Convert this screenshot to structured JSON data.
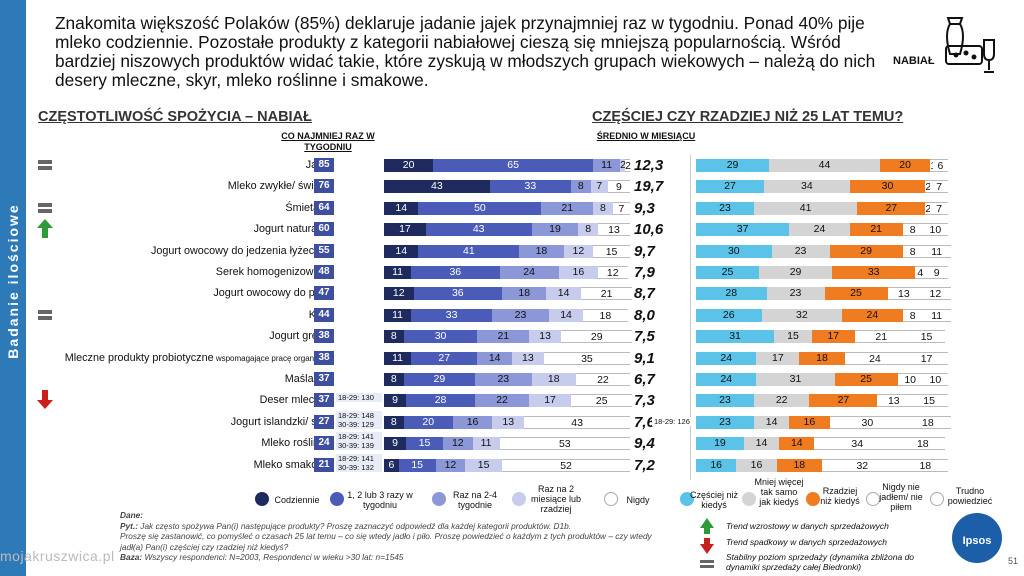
{
  "side_label": "Badanie ilościowe",
  "headline": "Znakomita większość Polaków (85%) deklaruje jadanie jajek przynajmniej raz w tygodniu. Ponad 40% pije mleko codziennie. Pozostałe produkty z kategorii nabiałowej cieszą się mniejszą popularnością. Wśród bardziej niszowych produktów widać takie, które zyskują w młodszych grupach wiekowych – należą do nich desery mleczne, skyr, mleko roślinne i smakowe.",
  "category_label": "NABIAŁ",
  "left_title": "CZĘSTOTLIWOŚĆ SPOŻYCIA – NABIAŁ",
  "right_title": "CZĘŚCIEJ CZY RZADZIEJ NIŻ 25 LAT TEMU?",
  "sub_week": "CO NAJMNIEJ RAZ W TYGODNIU",
  "sub_month": "ŚREDNIO W MIESIĄCU",
  "colors": {
    "codziennie": "#1f2a5e",
    "123": "#4a5cb8",
    "2-4": "#8c97d8",
    "raz2": "#c8ccec",
    "nigdy": "#ffffff",
    "czesciej": "#5bc3e8",
    "mniej": "#d4d4d4",
    "rzadziej": "#f07c22",
    "nigdy_r": "#ffffff",
    "trudno": "#ffffff",
    "trend_up": "#2e9b3a",
    "trend_down": "#c8211d",
    "trend_flat": "#666666"
  },
  "chart_data": [
    {
      "type": "bar",
      "title": "CZĘSTOTLIWOŚĆ SPOŻYCIA – NABIAŁ",
      "stacked": true,
      "categories": [
        "Jajka",
        "Mleko zwykłe/ świeże",
        "Śmietana",
        "Jogurt naturalny",
        "Jogurt owocowy do jedzenia łyżeczką",
        "Serek homogenizowany",
        "Jogurt owocowy do picia",
        "Kefir",
        "Jogurt grecki",
        "Mleczne produkty probiotyczne",
        "Maślanka",
        "Deser mleczny",
        "Jogurt islandzki/ skyr",
        "Mleko roślinne",
        "Mleko smakowe"
      ],
      "category_suffix": [
        "",
        "",
        "",
        "",
        "",
        "",
        "",
        "",
        "",
        "wspomagające pracę organizmu",
        "",
        "",
        "",
        "",
        ""
      ],
      "weekly_pct": [
        85,
        76,
        64,
        60,
        55,
        48,
        47,
        44,
        38,
        38,
        37,
        37,
        27,
        24,
        21
      ],
      "monthly_avg": [
        "12,3",
        "19,7",
        "9,3",
        "10,6",
        "9,7",
        "7,9",
        "8,7",
        "8,0",
        "7,5",
        "9,1",
        "6,7",
        "7,3",
        "7,6",
        "9,4",
        "7,2"
      ],
      "trend": [
        "flat",
        "",
        "flat",
        "up",
        "",
        "",
        "",
        "flat",
        "",
        "",
        "",
        "down",
        "",
        "",
        ""
      ],
      "age_weekly": [
        "",
        "",
        "",
        "",
        "",
        "",
        "",
        "",
        "",
        "",
        "",
        "18-29: 130",
        "18-29: 148|30-39: 129",
        "18-29: 141|30-39: 139",
        "18-29: 141|30-39: 132"
      ],
      "age_monthly": [
        "",
        "",
        "",
        "",
        "",
        "",
        "",
        "",
        "",
        "",
        "",
        "",
        "18-29: 126",
        "",
        ""
      ],
      "series": [
        {
          "name": "Codziennie",
          "values": [
            20,
            43,
            14,
            17,
            14,
            11,
            12,
            11,
            8,
            11,
            8,
            9,
            8,
            9,
            6
          ]
        },
        {
          "name": "1, 2 lub 3 razy w tygodniu",
          "values": [
            65,
            33,
            50,
            43,
            41,
            36,
            36,
            33,
            30,
            27,
            29,
            28,
            20,
            15,
            15
          ]
        },
        {
          "name": "Raz na 2-4 tygodnie",
          "values": [
            11,
            8,
            21,
            19,
            18,
            24,
            18,
            23,
            21,
            14,
            23,
            22,
            16,
            12,
            12
          ]
        },
        {
          "name": "Raz na 2 miesiące lub rzadziej",
          "values": [
            2,
            7,
            8,
            8,
            12,
            16,
            14,
            14,
            13,
            13,
            18,
            17,
            13,
            11,
            15
          ]
        },
        {
          "name": "Nigdy",
          "values": [
            2,
            9,
            7,
            13,
            15,
            12,
            21,
            18,
            29,
            35,
            22,
            25,
            43,
            53,
            52
          ]
        }
      ]
    },
    {
      "type": "bar",
      "title": "CZĘŚCIEJ CZY RZADZIEJ NIŻ 25 LAT TEMU?",
      "stacked": true,
      "categories": [
        "Jajka",
        "Mleko zwykłe/ świeże",
        "Śmietana",
        "Jogurt naturalny",
        "Jogurt owocowy do jedzenia łyżeczką",
        "Serek homogenizowany",
        "Jogurt owocowy do picia",
        "Kefir",
        "Jogurt grecki",
        "Mleczne produkty probiotyczne",
        "Maślanka",
        "Deser mleczny",
        "Jogurt islandzki/ skyr",
        "Mleko roślinne",
        "Mleko smakowe"
      ],
      "series": [
        {
          "name": "Częściej niż kiedyś",
          "values": [
            29,
            27,
            23,
            37,
            30,
            25,
            28,
            26,
            31,
            24,
            24,
            23,
            23,
            19,
            16
          ]
        },
        {
          "name": "Mniej więcej tak samo jak kiedyś",
          "values": [
            44,
            34,
            41,
            24,
            23,
            29,
            23,
            32,
            15,
            17,
            31,
            22,
            14,
            14,
            16
          ]
        },
        {
          "name": "Rzadziej niż kiedyś",
          "values": [
            20,
            30,
            27,
            21,
            29,
            33,
            25,
            24,
            17,
            18,
            25,
            27,
            16,
            14,
            18
          ]
        },
        {
          "name": "Nigdy nie jadłem/ nie piłem",
          "values": [
            1,
            2,
            2,
            8,
            8,
            4,
            13,
            8,
            21,
            24,
            10,
            13,
            30,
            34,
            32
          ]
        },
        {
          "name": "Trudno powiedzieć",
          "values": [
            6,
            7,
            7,
            10,
            11,
            9,
            12,
            11,
            15,
            17,
            10,
            15,
            18,
            18,
            18
          ]
        }
      ]
    }
  ],
  "footer": {
    "dane_label": "Dane:",
    "pyt1_label": "Pyt.:",
    "pyt1": "Jak często spożywa Pan(i) następujące produkty? Proszę zaznaczyć odpowiedź dla każdej kategorii produktów. D1b.",
    "pyt2": "Proszę się zastanowić, co pomyśleć o czasach 25 lat temu – co się wtedy jadło i piło. Proszę powiedzieć o każdym z tych produktów – czy wtedy jadł(a) Pan(i) częściej czy rzadziej niż kiedyś?",
    "baza_label": "Baza:",
    "baza": "Wszyscy respondenci: N=2003, Respondenci w wieku >30 lat: n=1545"
  },
  "trend_legend": {
    "up": "Trend wzrostowy w danych sprzedażowych",
    "down": "Trend spadkowy w danych sprzedażowych",
    "flat": "Stabilny poziom sprzedaży (dynamika zbliżona do dynamiki sprzedaży całej Biedronki)"
  },
  "logo": "Ipsos",
  "page_number": "51",
  "watermark": "mojakruszwica.pl"
}
